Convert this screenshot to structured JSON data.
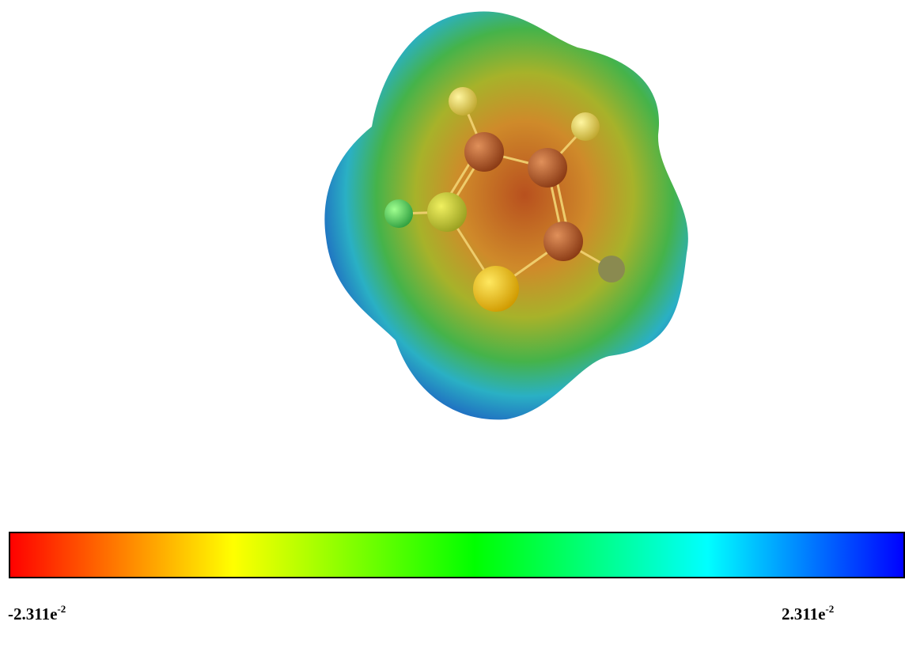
{
  "colorbar": {
    "min": {
      "mantissa": "-2.311e",
      "exponent": "-2"
    },
    "max": {
      "mantissa": "2.311e",
      "exponent": "-2"
    }
  }
}
